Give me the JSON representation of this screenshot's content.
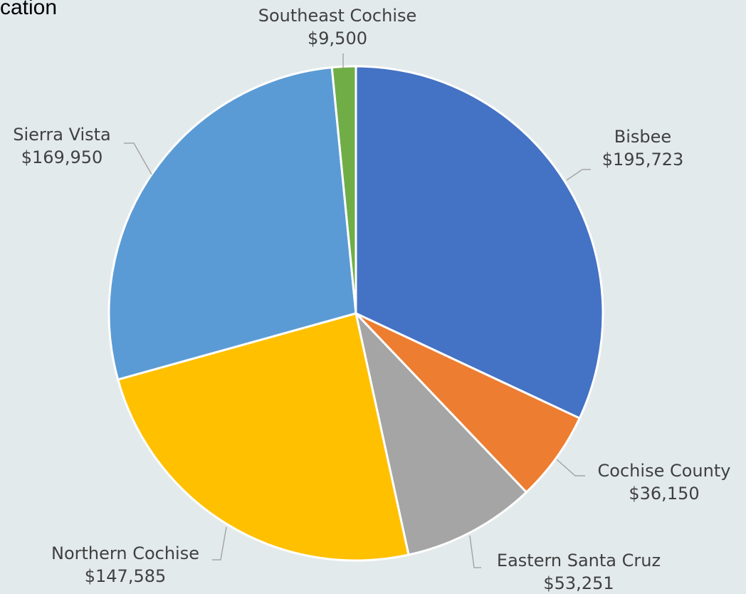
{
  "title_fragment": "cation",
  "chart_data": {
    "type": "pie",
    "title": "",
    "slices": [
      {
        "label": "Bisbee",
        "value": 195723,
        "value_label": "$195,723",
        "color": "#4472c4"
      },
      {
        "label": "Cochise County",
        "value": 36150,
        "value_label": "$36,150",
        "color": "#ed7d31"
      },
      {
        "label": "Eastern Santa Cruz",
        "value": 53251,
        "value_label": "$53,251",
        "color": "#a5a5a5"
      },
      {
        "label": "Northern Cochise",
        "value": 147585,
        "value_label": "$147,585",
        "color": "#ffc000"
      },
      {
        "label": "Sierra Vista",
        "value": 169950,
        "value_label": "$169,950",
        "color": "#5b9bd5"
      },
      {
        "label": "Southeast Cochise",
        "value": 9500,
        "value_label": "$9,500",
        "color": "#70ad47"
      }
    ],
    "start_angle": "12 o'clock",
    "direction": "clockwise",
    "data_labels": "outside with leader lines",
    "legend": "none"
  }
}
